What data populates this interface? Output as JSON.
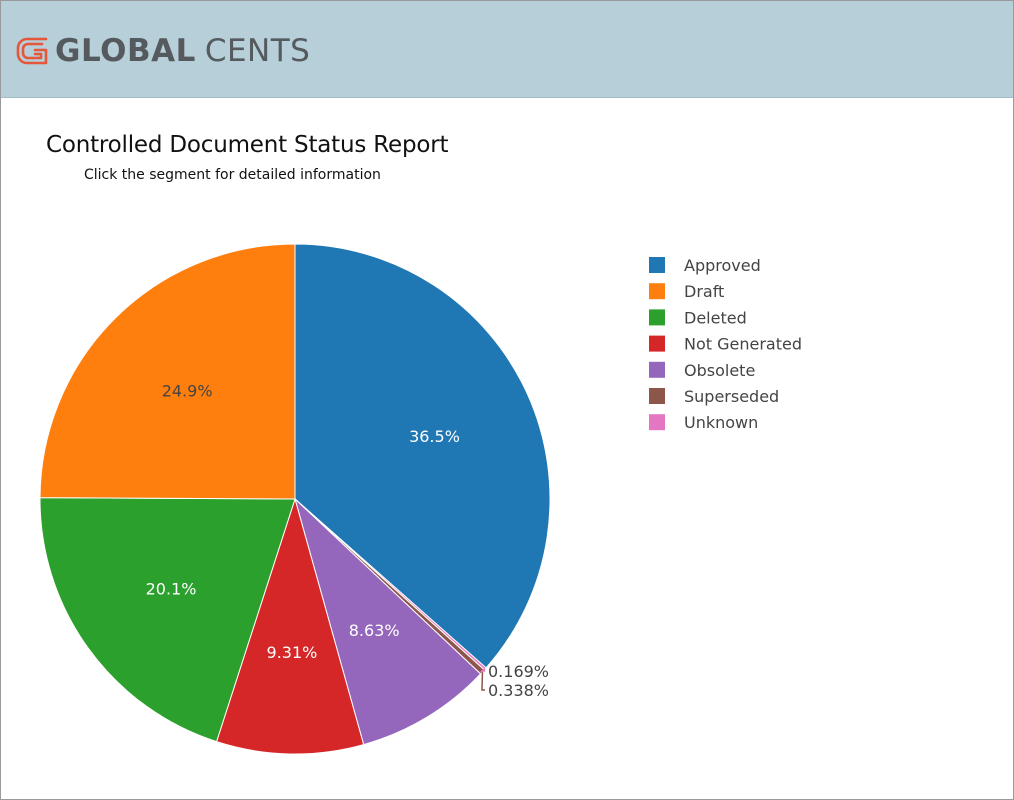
{
  "brand": {
    "name_bold": "GLOBAL",
    "name_light": "CENTS",
    "accent_color": "#e5563b"
  },
  "header": {
    "title": "Controlled Document Status Report",
    "subtitle": "Click the segment for detailed information"
  },
  "chart_data": {
    "type": "pie",
    "title": "Controlled Document Status Report",
    "subtitle": "Click the segment for detailed information",
    "direction": "clockwise",
    "start_angle_deg": 0,
    "legend_position": "top-right",
    "slices": [
      {
        "label": "Approved",
        "value": 36.5,
        "display": "36.5%",
        "color": "#1f77b4"
      },
      {
        "label": "Unknown",
        "value": 0.169,
        "display": "0.169%",
        "color": "#e377c2"
      },
      {
        "label": "Superseded",
        "value": 0.338,
        "display": "0.338%",
        "color": "#8c564b"
      },
      {
        "label": "Obsolete",
        "value": 8.63,
        "display": "8.63%",
        "color": "#9467bd"
      },
      {
        "label": "Not Generated",
        "value": 9.31,
        "display": "9.31%",
        "color": "#d62728"
      },
      {
        "label": "Deleted",
        "value": 20.1,
        "display": "20.1%",
        "color": "#2ca02c"
      },
      {
        "label": "Draft",
        "value": 24.9,
        "display": "24.9%",
        "color": "#ff7f0e"
      }
    ],
    "legend": [
      "Approved",
      "Draft",
      "Deleted",
      "Not Generated",
      "Obsolete",
      "Superseded",
      "Unknown"
    ]
  }
}
